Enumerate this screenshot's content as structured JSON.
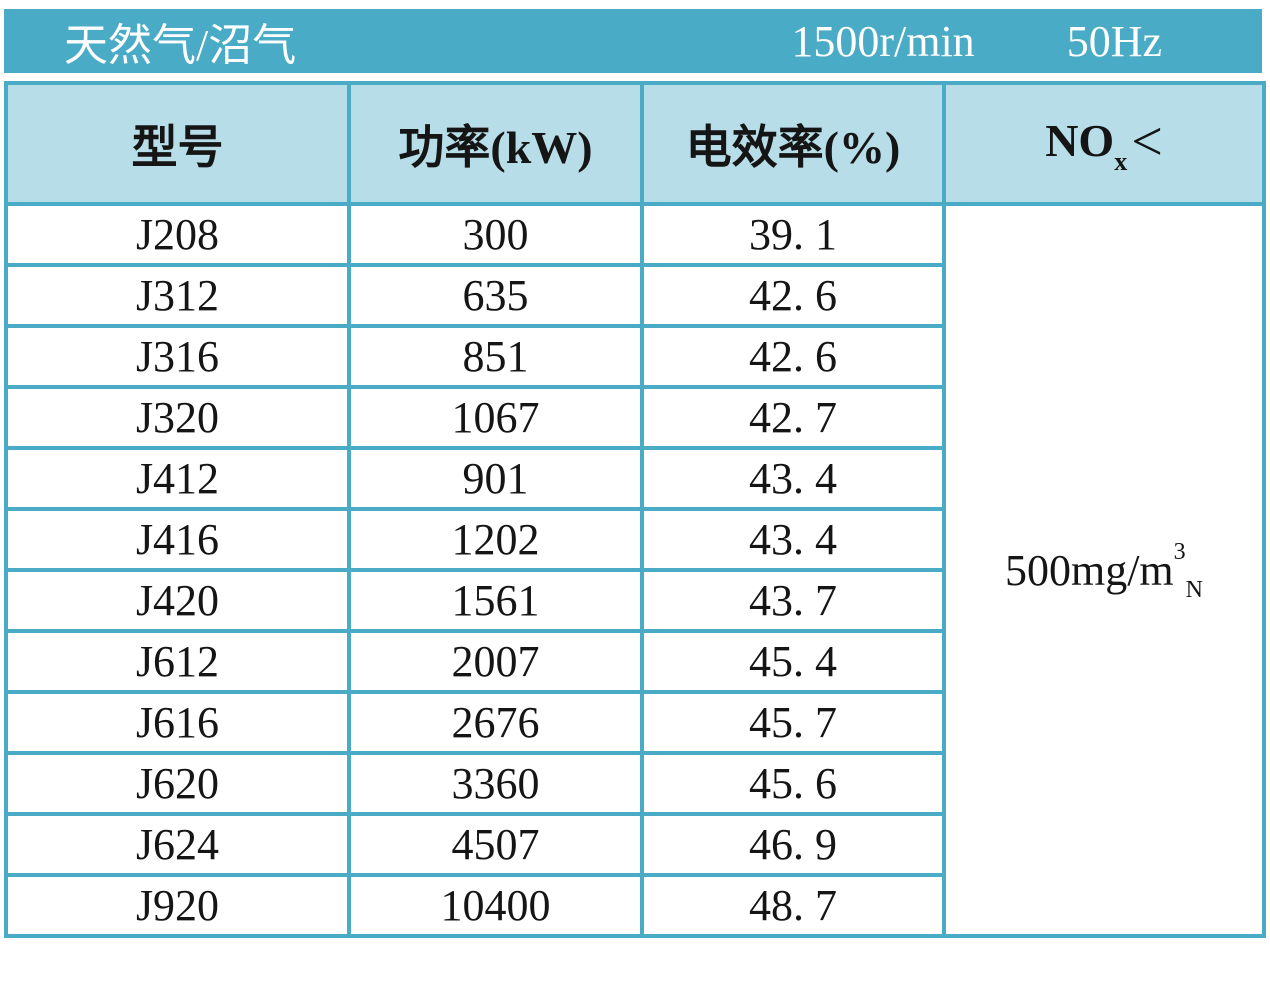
{
  "title_bar": {
    "category": "天然气/沼气",
    "speed": "1500r/min",
    "frequency": "50Hz"
  },
  "table": {
    "columns": [
      "型号",
      "功率(kW)",
      "电效率(%)"
    ],
    "nox_header": {
      "prefix": "NO",
      "sub": "x",
      "symbol": "<"
    },
    "nox_limit": {
      "prefix": "500mg/m",
      "sup": "3",
      "sub": "N"
    },
    "rows": [
      {
        "model": "J208",
        "power": "300",
        "efficiency": "39. 1"
      },
      {
        "model": "J312",
        "power": "635",
        "efficiency": "42. 6"
      },
      {
        "model": "J316",
        "power": "851",
        "efficiency": "42. 6"
      },
      {
        "model": "J320",
        "power": "1067",
        "efficiency": "42. 7"
      },
      {
        "model": "J412",
        "power": "901",
        "efficiency": "43. 4"
      },
      {
        "model": "J416",
        "power": "1202",
        "efficiency": "43. 4"
      },
      {
        "model": "J420",
        "power": "1561",
        "efficiency": "43. 7"
      },
      {
        "model": "J612",
        "power": "2007",
        "efficiency": "45. 4"
      },
      {
        "model": "J616",
        "power": "2676",
        "efficiency": "45. 7"
      },
      {
        "model": "J620",
        "power": "3360",
        "efficiency": "45. 6"
      },
      {
        "model": "J624",
        "power": "4507",
        "efficiency": "46. 9"
      },
      {
        "model": "J920",
        "power": "10400",
        "efficiency": "48. 7"
      }
    ]
  },
  "colors": {
    "accent": "#4AABC6",
    "header_bg": "#B7DDE8",
    "title_text": "#FFFFFF"
  }
}
